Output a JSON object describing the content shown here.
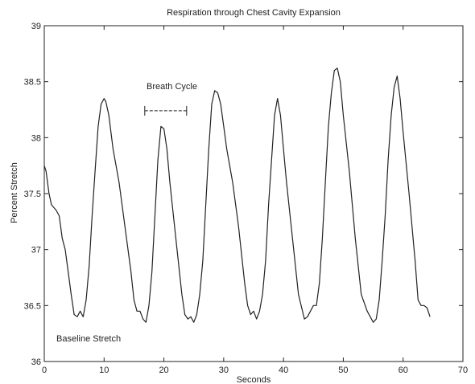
{
  "chart_data": {
    "type": "line",
    "title": "Respiration through Chest Cavity Expansion",
    "xlabel": "Seconds",
    "ylabel": "Percent Stretch",
    "xlim": [
      0,
      70
    ],
    "ylim": [
      36,
      39
    ],
    "xticks": [
      "0",
      "10",
      "20",
      "30",
      "40",
      "50",
      "60",
      "70"
    ],
    "yticks": [
      "36",
      "36.5",
      "37",
      "37.5",
      "38",
      "38.5",
      "39"
    ],
    "grid": false,
    "annotations": {
      "breath_cycle": "Breath Cycle",
      "baseline": "Baseline Stretch"
    },
    "breath_cycle_marker": {
      "x_start": 16.8,
      "x_end": 23.8,
      "y": 38.24
    },
    "colors": {
      "line": "#222222",
      "axes": "#222222"
    },
    "series": [
      {
        "x": [
          0,
          0.3,
          0.8,
          1.2,
          2.0,
          2.5,
          3.0,
          3.5,
          4.0,
          4.5,
          5.0,
          5.5,
          6.0,
          6.5,
          7.0,
          7.5,
          8.0,
          8.5,
          9.0,
          9.5,
          10.0,
          10.3,
          10.8,
          11.5,
          12.5,
          13.5,
          14.5,
          15.0,
          15.5,
          16.0,
          16.5,
          17.0,
          17.5,
          18.0,
          18.5,
          19.0,
          19.5,
          20.0,
          20.5,
          21.0,
          22.0,
          23.0,
          23.5,
          24.0,
          24.5,
          25.0,
          25.5,
          26.0,
          26.5,
          27.0,
          27.5,
          28.0,
          28.5,
          29.0,
          29.5,
          30.0,
          30.5,
          31.5,
          32.5,
          33.5,
          34.0,
          34.5,
          35.0,
          35.5,
          36.0,
          36.5,
          37.0,
          37.5,
          38.0,
          38.5,
          39.0,
          39.5,
          40.0,
          40.5,
          41.5,
          42.5,
          43.5,
          44.0,
          44.5,
          45.0,
          45.5,
          46.0,
          46.5,
          47.0,
          47.5,
          48.0,
          48.5,
          49.0,
          49.5,
          50.0,
          51.0,
          52.0,
          53.0,
          54.0,
          54.5,
          55.0,
          55.5,
          56.0,
          56.5,
          57.0,
          57.5,
          58.0,
          58.5,
          59.0,
          59.5,
          60.0,
          61.0,
          62.0,
          62.5,
          63.0,
          63.5,
          64.0,
          64.5
        ],
        "y": [
          37.75,
          37.7,
          37.5,
          37.4,
          37.35,
          37.3,
          37.1,
          37.0,
          36.8,
          36.6,
          36.42,
          36.4,
          36.45,
          36.4,
          36.55,
          36.85,
          37.3,
          37.7,
          38.1,
          38.3,
          38.35,
          38.32,
          38.2,
          37.9,
          37.6,
          37.2,
          36.8,
          36.55,
          36.45,
          36.45,
          36.38,
          36.35,
          36.5,
          36.8,
          37.3,
          37.8,
          38.1,
          38.08,
          37.9,
          37.6,
          37.1,
          36.6,
          36.42,
          36.38,
          36.4,
          36.35,
          36.42,
          36.6,
          36.9,
          37.4,
          37.9,
          38.3,
          38.42,
          38.4,
          38.3,
          38.1,
          37.9,
          37.6,
          37.2,
          36.7,
          36.5,
          36.42,
          36.45,
          36.38,
          36.45,
          36.6,
          36.9,
          37.4,
          37.8,
          38.2,
          38.35,
          38.2,
          37.9,
          37.6,
          37.1,
          36.6,
          36.38,
          36.4,
          36.45,
          36.5,
          36.5,
          36.7,
          37.1,
          37.6,
          38.1,
          38.4,
          38.6,
          38.62,
          38.5,
          38.2,
          37.7,
          37.1,
          36.6,
          36.45,
          36.4,
          36.35,
          36.38,
          36.55,
          36.9,
          37.3,
          37.8,
          38.2,
          38.45,
          38.55,
          38.35,
          38.05,
          37.5,
          36.9,
          36.55,
          36.5,
          36.5,
          36.48,
          36.4
        ]
      }
    ]
  }
}
